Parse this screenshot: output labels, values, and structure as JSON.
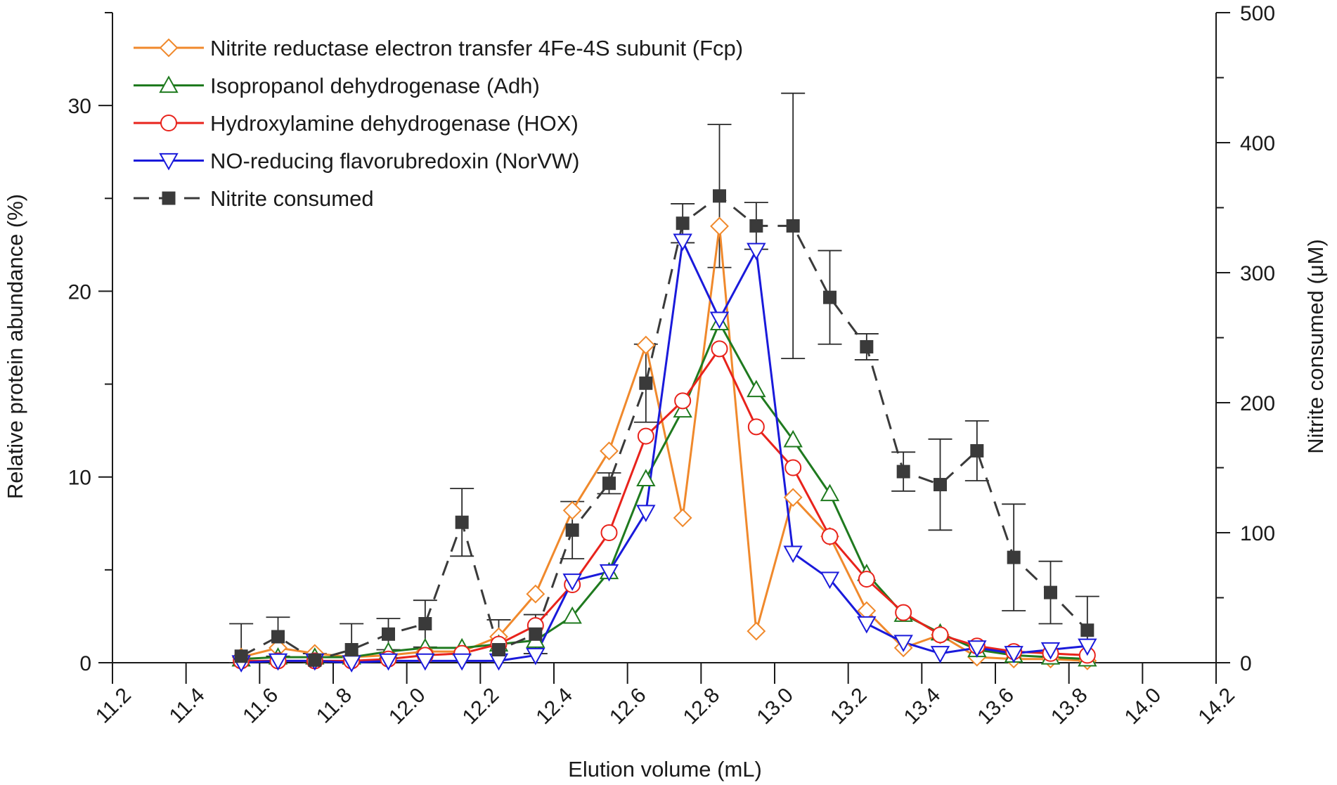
{
  "chart_data": {
    "type": "line",
    "xlabel": "Elution volume (mL)",
    "ylabel_left": "Relative protein abundance (%)",
    "ylabel_right": "Nitrite consumed (μM)",
    "xlim": [
      11.2,
      14.2
    ],
    "ylim_left": [
      0,
      35
    ],
    "ylim_right": [
      0,
      500
    ],
    "x_ticks": [
      "11.2",
      "11.4",
      "11.6",
      "11.8",
      "12.0",
      "12.2",
      "12.4",
      "12.6",
      "12.8",
      "13.0",
      "13.2",
      "13.4",
      "13.6",
      "13.8",
      "14.0",
      "14.2"
    ],
    "y_left_ticks": [
      "0",
      "10",
      "20",
      "30"
    ],
    "y_right_ticks": [
      "0",
      "100",
      "200",
      "300",
      "400",
      "500"
    ],
    "grid": false,
    "legend_position": "top-left",
    "x": [
      11.55,
      11.65,
      11.75,
      11.85,
      11.95,
      12.05,
      12.15,
      12.25,
      12.35,
      12.45,
      12.55,
      12.65,
      12.75,
      12.85,
      12.95,
      13.05,
      13.15,
      13.25,
      13.35,
      13.45,
      13.55,
      13.65,
      13.75,
      13.85
    ],
    "series": [
      {
        "name": "Nitrite reductase electron transfer 4Fe-4S subunit (Fcp)",
        "axis": "left",
        "color": "#F0892C",
        "marker": "diamond",
        "values": [
          0.3,
          0.8,
          0.5,
          0.3,
          0.4,
          0.6,
          0.6,
          1.4,
          3.7,
          8.2,
          11.4,
          17.1,
          7.8,
          23.5,
          1.7,
          8.9,
          6.8,
          2.8,
          0.8,
          1.5,
          0.3,
          0.2,
          0.2,
          0.1
        ]
      },
      {
        "name": "Isopropanol dehydrogenase (Adh)",
        "axis": "left",
        "color": "#1F7A1F",
        "marker": "triangle-up",
        "values": [
          0.2,
          0.3,
          0.3,
          0.3,
          0.6,
          0.8,
          0.8,
          1.0,
          1.2,
          2.5,
          4.9,
          9.9,
          13.6,
          18.3,
          14.7,
          12.0,
          9.1,
          4.8,
          2.6,
          1.6,
          0.7,
          0.4,
          0.3,
          0.2
        ]
      },
      {
        "name": "Hydroxylamine dehydrogenase (HOX)",
        "axis": "left",
        "color": "#E8231C",
        "marker": "circle",
        "values": [
          0.1,
          0.1,
          0.1,
          0.1,
          0.2,
          0.4,
          0.5,
          1.0,
          2.0,
          4.2,
          7.0,
          12.2,
          14.1,
          16.9,
          12.7,
          10.5,
          6.8,
          4.5,
          2.7,
          1.5,
          0.9,
          0.6,
          0.5,
          0.4
        ]
      },
      {
        "name": "NO-reducing flavorubredoxin (NorVW)",
        "axis": "left",
        "color": "#1A1ADB",
        "marker": "triangle-down",
        "values": [
          0.0,
          0.1,
          0.1,
          0.0,
          0.1,
          0.1,
          0.1,
          0.1,
          0.4,
          4.4,
          4.9,
          8.1,
          22.7,
          18.5,
          22.2,
          5.9,
          4.5,
          2.1,
          1.1,
          0.5,
          0.8,
          0.5,
          0.7,
          0.9
        ]
      },
      {
        "name": "Nitrite consumed",
        "axis": "right",
        "color": "#3A3A3A",
        "marker": "square",
        "dashed": true,
        "values": [
          5,
          20,
          2,
          10,
          22,
          30,
          108,
          10,
          22,
          102,
          138,
          215,
          338,
          359,
          336,
          336,
          281,
          243,
          147,
          137,
          163,
          81,
          54,
          25
        ],
        "errors": [
          25,
          15,
          5,
          20,
          12,
          18,
          26,
          23,
          15,
          22,
          8,
          30,
          15,
          55,
          18,
          102,
          36,
          10,
          15,
          35,
          23,
          41,
          24,
          26
        ]
      }
    ]
  }
}
